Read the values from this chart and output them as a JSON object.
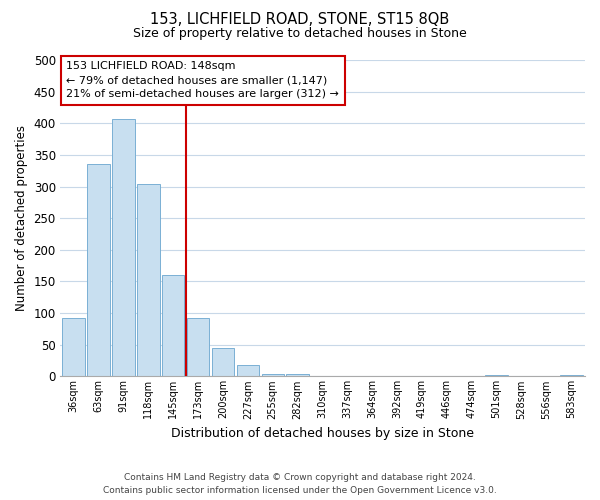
{
  "title": "153, LICHFIELD ROAD, STONE, ST15 8QB",
  "subtitle": "Size of property relative to detached houses in Stone",
  "xlabel": "Distribution of detached houses by size in Stone",
  "ylabel": "Number of detached properties",
  "bar_labels": [
    "36sqm",
    "63sqm",
    "91sqm",
    "118sqm",
    "145sqm",
    "173sqm",
    "200sqm",
    "227sqm",
    "255sqm",
    "282sqm",
    "310sqm",
    "337sqm",
    "364sqm",
    "392sqm",
    "419sqm",
    "446sqm",
    "474sqm",
    "501sqm",
    "528sqm",
    "556sqm",
    "583sqm"
  ],
  "bar_values": [
    93,
    336,
    406,
    304,
    160,
    93,
    45,
    18,
    4,
    3,
    0,
    0,
    0,
    0,
    0,
    0,
    0,
    2,
    0,
    0,
    2
  ],
  "bar_color": "#c8dff0",
  "bar_edge_color": "#7ab0d4",
  "vline_x": 4.5,
  "vline_color": "#cc0000",
  "annotation_title": "153 LICHFIELD ROAD: 148sqm",
  "annotation_line1": "← 79% of detached houses are smaller (1,147)",
  "annotation_line2": "21% of semi-detached houses are larger (312) →",
  "annotation_box_color": "#ffffff",
  "annotation_box_edge": "#cc0000",
  "ylim": [
    0,
    500
  ],
  "yticks": [
    0,
    50,
    100,
    150,
    200,
    250,
    300,
    350,
    400,
    450,
    500
  ],
  "footer_line1": "Contains HM Land Registry data © Crown copyright and database right 2024.",
  "footer_line2": "Contains public sector information licensed under the Open Government Licence v3.0.",
  "bg_color": "#ffffff",
  "grid_color": "#c8d8e8"
}
